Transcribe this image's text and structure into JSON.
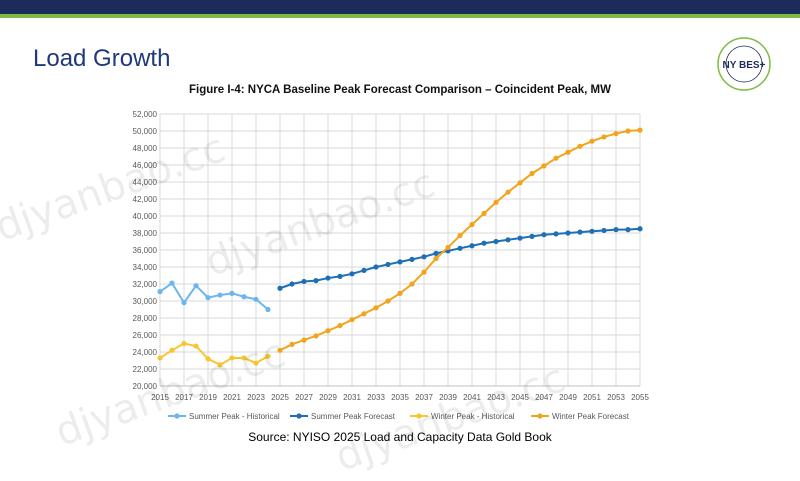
{
  "slide": {
    "title": "Load Growth",
    "source": "Source: NYISO 2025 Load and Capacity Data Gold Book",
    "colors": {
      "navy": "#1c2a5c",
      "green": "#7dbb42",
      "title": "#1f3a7a"
    }
  },
  "logo": {
    "text": "NY BES+",
    "ring_text": "New York Battery and Energy Storage Technology Consortium",
    "icon": "ny-best-logo"
  },
  "watermark": {
    "text": "djyanbao.cc"
  },
  "chart_data": {
    "type": "line",
    "title": "Figure I-4: NYCA Baseline Peak Forecast Comparison – Coincident Peak, MW",
    "xlabel": "",
    "ylabel": "",
    "x": [
      2015,
      2016,
      2017,
      2018,
      2019,
      2020,
      2021,
      2022,
      2023,
      2024,
      2025,
      2026,
      2027,
      2028,
      2029,
      2030,
      2031,
      2032,
      2033,
      2034,
      2035,
      2036,
      2037,
      2038,
      2039,
      2040,
      2041,
      2042,
      2043,
      2044,
      2045,
      2046,
      2047,
      2048,
      2049,
      2050,
      2051,
      2052,
      2053,
      2054,
      2055
    ],
    "xlim": [
      2015,
      2055
    ],
    "xticks": [
      2015,
      2017,
      2019,
      2021,
      2023,
      2025,
      2027,
      2029,
      2031,
      2033,
      2035,
      2037,
      2039,
      2041,
      2043,
      2045,
      2047,
      2049,
      2051,
      2053,
      2055
    ],
    "ylim": [
      20000,
      52000
    ],
    "yticks": [
      20000,
      22000,
      24000,
      26000,
      28000,
      30000,
      32000,
      34000,
      36000,
      38000,
      40000,
      42000,
      44000,
      46000,
      48000,
      50000,
      52000
    ],
    "ytick_labels": [
      "20,000",
      "22,000",
      "24,000",
      "26,000",
      "28,000",
      "30,000",
      "32,000",
      "34,000",
      "36,000",
      "38,000",
      "40,000",
      "42,000",
      "44,000",
      "46,000",
      "48,000",
      "50,000",
      "52,000"
    ],
    "grid": true,
    "legend_position": "bottom",
    "series": [
      {
        "name": "Summer Peak - Historical",
        "color": "#6cb6ee",
        "x": [
          2015,
          2016,
          2017,
          2018,
          2019,
          2020,
          2021,
          2022,
          2023,
          2024
        ],
        "values": [
          31100,
          32100,
          29800,
          31800,
          30400,
          30700,
          30900,
          30500,
          30200,
          29000
        ]
      },
      {
        "name": "Summer Peak Forecast",
        "color": "#1f6fb7",
        "x": [
          2025,
          2026,
          2027,
          2028,
          2029,
          2030,
          2031,
          2032,
          2033,
          2034,
          2035,
          2036,
          2037,
          2038,
          2039,
          2040,
          2041,
          2042,
          2043,
          2044,
          2045,
          2046,
          2047,
          2048,
          2049,
          2050,
          2051,
          2052,
          2053,
          2054,
          2055
        ],
        "values": [
          31500,
          32000,
          32300,
          32400,
          32700,
          32900,
          33200,
          33600,
          34000,
          34300,
          34600,
          34900,
          35200,
          35600,
          35900,
          36200,
          36500,
          36800,
          37000,
          37200,
          37400,
          37600,
          37800,
          37900,
          38000,
          38100,
          38200,
          38300,
          38400,
          38400,
          38500
        ]
      },
      {
        "name": "Winter Peak - Historical",
        "color": "#f7c62f",
        "x": [
          2015,
          2016,
          2017,
          2018,
          2019,
          2020,
          2021,
          2022,
          2023,
          2024
        ],
        "values": [
          23300,
          24200,
          25000,
          24700,
          23200,
          22500,
          23300,
          23300,
          22700,
          23500
        ]
      },
      {
        "name": "Winter Peak Forecast",
        "color": "#f2a41c",
        "x": [
          2025,
          2026,
          2027,
          2028,
          2029,
          2030,
          2031,
          2032,
          2033,
          2034,
          2035,
          2036,
          2037,
          2038,
          2039,
          2040,
          2041,
          2042,
          2043,
          2044,
          2045,
          2046,
          2047,
          2048,
          2049,
          2050,
          2051,
          2052,
          2053,
          2054,
          2055
        ],
        "values": [
          24200,
          24900,
          25400,
          25900,
          26500,
          27100,
          27800,
          28500,
          29200,
          30000,
          30900,
          32000,
          33400,
          35000,
          36300,
          37700,
          39000,
          40300,
          41600,
          42800,
          43900,
          45000,
          45900,
          46800,
          47500,
          48200,
          48800,
          49300,
          49700,
          50000,
          50100
        ]
      }
    ]
  }
}
